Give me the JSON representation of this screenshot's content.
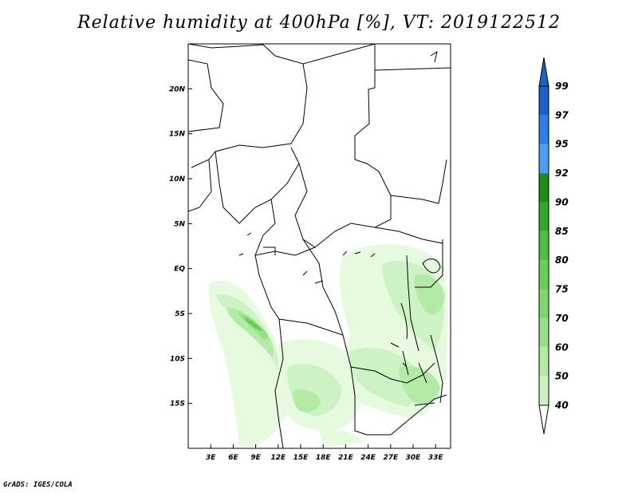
{
  "title": "Relative humidity at 400hPa [%], VT: 2019122512",
  "credit": "GrADS: IGES/COLA",
  "map": {
    "lon_range": [
      0,
      35
    ],
    "lat_range": [
      -20,
      25
    ],
    "lon_ticks": [
      {
        "v": 3,
        "label": "3E"
      },
      {
        "v": 6,
        "label": "6E"
      },
      {
        "v": 9,
        "label": "9E"
      },
      {
        "v": 12,
        "label": "12E"
      },
      {
        "v": 15,
        "label": "15E"
      },
      {
        "v": 18,
        "label": "18E"
      },
      {
        "v": 21,
        "label": "21E"
      },
      {
        "v": 24,
        "label": "24E"
      },
      {
        "v": 27,
        "label": "27E"
      },
      {
        "v": 30,
        "label": "30E"
      },
      {
        "v": 33,
        "label": "33E"
      }
    ],
    "lat_ticks": [
      {
        "v": 20,
        "label": "20N"
      },
      {
        "v": 15,
        "label": "15N"
      },
      {
        "v": 10,
        "label": "10N"
      },
      {
        "v": 5,
        "label": "5N"
      },
      {
        "v": 0,
        "label": "EQ"
      },
      {
        "v": -5,
        "label": "5S"
      },
      {
        "v": -10,
        "label": "10S"
      },
      {
        "v": -15,
        "label": "15S"
      }
    ]
  },
  "colorbar": {
    "levels": [
      "40",
      "50",
      "60",
      "70",
      "75",
      "80",
      "85",
      "90",
      "92",
      "95",
      "97",
      "99"
    ],
    "colors": [
      "#e6fae0",
      "#cdf2c3",
      "#b3eaa5",
      "#97e08a",
      "#7fd86f",
      "#66cf55",
      "#4cc13f",
      "#32a82b",
      "#1a8f18",
      "#4a9ff2",
      "#2b7fe6",
      "#1a62c8"
    ],
    "arrow_top_color": "#1a62c8",
    "arrow_bottom_color": "#ffffff"
  }
}
